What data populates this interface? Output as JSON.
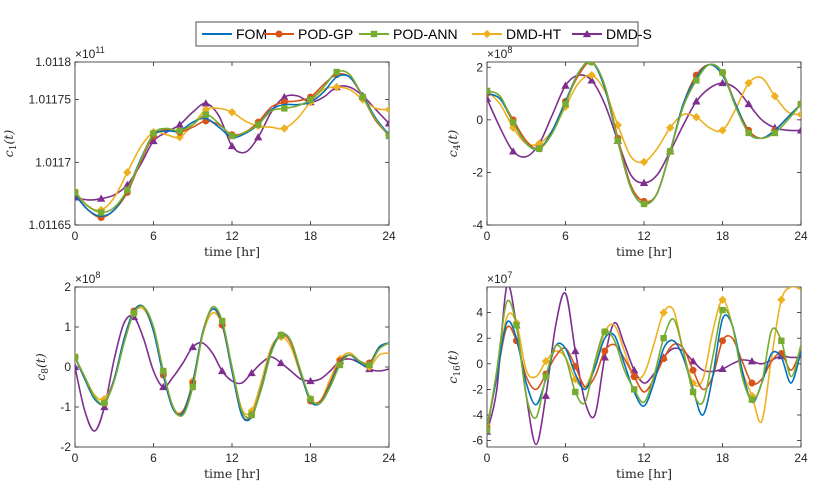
{
  "chart_data": {
    "type": "line",
    "colors": {
      "FOM": "#0072BD",
      "POD-GP": "#D95319",
      "POD-ANN": "#77AC30",
      "DMD-HT": "#EDB120",
      "DMD-S": "#7E2F8E"
    },
    "legend": {
      "position": "top-center",
      "entries": [
        {
          "name": "FOM",
          "marker": "none"
        },
        {
          "name": "POD-GP",
          "marker": "circle"
        },
        {
          "name": "POD-ANN",
          "marker": "square"
        },
        {
          "name": "DMD-HT",
          "marker": "diamond"
        },
        {
          "name": "DMD-S",
          "marker": "triangle"
        }
      ]
    },
    "panels": [
      {
        "id": "c1",
        "ylabel_base": "c",
        "ylabel_sub": "1",
        "ylabel_arg": "(t)",
        "xlabel": "time [hr]",
        "xlim": [
          0,
          24
        ],
        "xticks": [
          0,
          6,
          12,
          18,
          24
        ],
        "xtick_labels": [
          "0",
          "6",
          "12",
          "18",
          "24"
        ],
        "ylim": [
          1.01165,
          1.01178
        ],
        "yticks": [
          1.01165,
          1.0117,
          1.01175,
          1.01178
        ],
        "ytick_labels": [
          "1.01165",
          "1.0117",
          "1.01175",
          "1.0118"
        ],
        "sci_base": "×10",
        "sci_exp": "11",
        "t": [
          0,
          1,
          2,
          3,
          4,
          5,
          6,
          7,
          8,
          9,
          10,
          11,
          12,
          13,
          14,
          15,
          16,
          17,
          18,
          19,
          20,
          21,
          22,
          23,
          24
        ],
        "series": [
          {
            "name": "FOM",
            "values": [
              1.011674,
              1.011662,
              1.011657,
              1.011662,
              1.011678,
              1.011702,
              1.011722,
              1.011725,
              1.011725,
              1.011732,
              1.011735,
              1.011728,
              1.01172,
              1.011723,
              1.01173,
              1.011742,
              1.011746,
              1.011746,
              1.011748,
              1.011756,
              1.011768,
              1.011768,
              1.011753,
              1.011735,
              1.011722
            ]
          },
          {
            "name": "POD-GP",
            "values": [
              1.011675,
              1.011662,
              1.011656,
              1.011662,
              1.011676,
              1.0117,
              1.011721,
              1.011726,
              1.011724,
              1.011728,
              1.011733,
              1.01173,
              1.011722,
              1.011724,
              1.011732,
              1.011744,
              1.011748,
              1.011749,
              1.011752,
              1.011762,
              1.01177,
              1.011768,
              1.011752,
              1.011733,
              1.011722
            ]
          },
          {
            "name": "POD-ANN",
            "values": [
              1.011676,
              1.011665,
              1.01166,
              1.011664,
              1.011678,
              1.011701,
              1.011723,
              1.011727,
              1.011725,
              1.01173,
              1.011738,
              1.011731,
              1.011721,
              1.011724,
              1.01173,
              1.011741,
              1.011743,
              1.011745,
              1.01175,
              1.01176,
              1.011772,
              1.01177,
              1.011752,
              1.011734,
              1.011721
            ]
          },
          {
            "name": "DMD-HT",
            "values": [
              1.011677,
              1.011665,
              1.011662,
              1.011672,
              1.011692,
              1.011712,
              1.011724,
              1.011722,
              1.01172,
              1.01173,
              1.011742,
              1.011743,
              1.01174,
              1.011733,
              1.011729,
              1.011728,
              1.011727,
              1.011735,
              1.011748,
              1.011758,
              1.01176,
              1.011758,
              1.01175,
              1.011743,
              1.011742
            ]
          },
          {
            "name": "DMD-S",
            "values": [
              1.011672,
              1.01167,
              1.011671,
              1.011674,
              1.011682,
              1.011698,
              1.011717,
              1.011724,
              1.01173,
              1.01174,
              1.011747,
              1.011737,
              1.011713,
              1.011708,
              1.01172,
              1.01174,
              1.011752,
              1.011753,
              1.011748,
              1.011752,
              1.01176,
              1.01176,
              1.011753,
              1.011742,
              1.011731
            ]
          }
        ]
      },
      {
        "id": "c4",
        "ylabel_base": "c",
        "ylabel_sub": "4",
        "ylabel_arg": "(t)",
        "xlabel": "time [hr]",
        "xlim": [
          0,
          24
        ],
        "xticks": [
          0,
          6,
          12,
          18,
          24
        ],
        "xtick_labels": [
          "0",
          "6",
          "12",
          "18",
          "24"
        ],
        "ylim": [
          -4,
          2.2
        ],
        "yticks": [
          -4,
          -2,
          0,
          2
        ],
        "ytick_labels": [
          "-4",
          "-2",
          "0",
          "2"
        ],
        "sci_base": "×10",
        "sci_exp": "8",
        "t": [
          0,
          1,
          2,
          3,
          4,
          5,
          6,
          7,
          8,
          9,
          10,
          11,
          12,
          13,
          14,
          15,
          16,
          17,
          18,
          19,
          20,
          21,
          22,
          23,
          24
        ],
        "series": [
          {
            "name": "FOM",
            "values": [
              1.0,
              0.8,
              -0.1,
              -0.9,
              -1.1,
              -0.4,
              0.7,
              1.8,
              2.2,
              1.2,
              -0.8,
              -2.6,
              -3.2,
              -2.8,
              -1.2,
              0.6,
              1.6,
              2.1,
              1.7,
              0.6,
              -0.5,
              -0.7,
              -0.4,
              0.1,
              0.6
            ]
          },
          {
            "name": "POD-GP",
            "values": [
              1.0,
              0.8,
              0.0,
              -0.8,
              -1.1,
              -0.4,
              0.7,
              1.7,
              2.2,
              1.3,
              -0.7,
              -2.5,
              -3.1,
              -2.8,
              -1.2,
              0.6,
              1.7,
              2.1,
              1.8,
              0.6,
              -0.4,
              -0.7,
              -0.4,
              0.1,
              0.6
            ]
          },
          {
            "name": "POD-ANN",
            "values": [
              1.1,
              0.9,
              -0.1,
              -0.9,
              -1.1,
              -0.5,
              0.6,
              1.8,
              2.2,
              1.3,
              -0.8,
              -2.6,
              -3.2,
              -2.8,
              -1.2,
              0.5,
              1.5,
              2.1,
              1.8,
              0.5,
              -0.5,
              -0.7,
              -0.5,
              0.0,
              0.6
            ]
          },
          {
            "name": "DMD-HT",
            "values": [
              1.1,
              0.6,
              -0.3,
              -0.9,
              -0.9,
              -0.4,
              0.5,
              1.4,
              1.7,
              1.1,
              -0.2,
              -1.4,
              -1.6,
              -1.1,
              -0.3,
              0.2,
              0.1,
              -0.3,
              -0.4,
              0.4,
              1.4,
              1.6,
              0.9,
              0.3,
              0.2
            ]
          },
          {
            "name": "DMD-S",
            "values": [
              0.8,
              -0.3,
              -1.2,
              -1.4,
              -0.9,
              0.2,
              1.3,
              1.7,
              1.5,
              0.6,
              -0.8,
              -2.1,
              -2.4,
              -2.1,
              -1.2,
              -0.2,
              0.7,
              1.2,
              1.4,
              1.2,
              0.6,
              0.0,
              -0.3,
              -0.4,
              -0.4
            ]
          }
        ]
      },
      {
        "id": "c8",
        "ylabel_base": "c",
        "ylabel_sub": "8",
        "ylabel_arg": "(t)",
        "xlabel": "time [hr]",
        "xlim": [
          0,
          24
        ],
        "xticks": [
          0,
          6,
          12,
          18,
          24
        ],
        "xtick_labels": [
          "0",
          "6",
          "12",
          "18",
          "24"
        ],
        "ylim": [
          -2,
          2
        ],
        "yticks": [
          -2,
          -1,
          0,
          1,
          2
        ],
        "ytick_labels": [
          "-2",
          "-1",
          "0",
          "1",
          "2"
        ],
        "sci_base": "×10",
        "sci_exp": "8",
        "t": [
          0,
          0.75,
          1.5,
          2.25,
          3,
          3.75,
          4.5,
          5.25,
          6,
          6.75,
          7.5,
          8.25,
          9,
          9.75,
          10.5,
          11.25,
          12,
          12.75,
          13.5,
          14.25,
          15,
          15.75,
          16.5,
          17.25,
          18,
          18.75,
          19.5,
          20.25,
          21,
          21.75,
          22.5,
          23.25,
          24
        ],
        "series": [
          {
            "name": "FOM",
            "values": [
              0.25,
              -0.3,
              -0.8,
              -0.9,
              -0.3,
              0.7,
              1.4,
              1.5,
              0.9,
              -0.2,
              -1.05,
              -1.15,
              -0.4,
              0.85,
              1.45,
              1.1,
              -0.1,
              -1.2,
              -1.25,
              -0.5,
              0.4,
              0.82,
              0.65,
              -0.15,
              -0.85,
              -0.9,
              -0.45,
              0.1,
              0.3,
              0.1,
              0.05,
              0.5,
              0.6
            ]
          },
          {
            "name": "POD-GP",
            "values": [
              0.25,
              -0.3,
              -0.8,
              -0.9,
              -0.3,
              0.7,
              1.4,
              1.5,
              0.9,
              -0.2,
              -1.05,
              -1.1,
              -0.4,
              0.85,
              1.45,
              1.05,
              -0.1,
              -1.2,
              -1.2,
              -0.5,
              0.4,
              0.8,
              0.6,
              -0.15,
              -0.85,
              -0.85,
              -0.4,
              0.15,
              0.3,
              0.15,
              0.1,
              0.5,
              0.6
            ]
          },
          {
            "name": "POD-ANN",
            "values": [
              0.25,
              -0.25,
              -0.75,
              -0.9,
              -0.35,
              0.6,
              1.35,
              1.5,
              1.0,
              -0.1,
              -1.0,
              -1.2,
              -0.5,
              0.8,
              1.5,
              1.15,
              0.0,
              -1.1,
              -1.2,
              -0.55,
              0.35,
              0.8,
              0.65,
              -0.1,
              -0.8,
              -0.9,
              -0.5,
              0.05,
              0.3,
              0.15,
              0.05,
              0.45,
              0.6
            ]
          },
          {
            "name": "DMD-HT",
            "values": [
              0.25,
              -0.25,
              -0.7,
              -0.8,
              -0.3,
              0.65,
              1.35,
              1.45,
              0.9,
              -0.15,
              -1.0,
              -1.1,
              -0.35,
              0.8,
              1.35,
              1.05,
              0.0,
              -1.05,
              -1.1,
              -0.35,
              0.5,
              0.75,
              0.5,
              -0.2,
              -0.8,
              -0.85,
              -0.3,
              0.2,
              0.35,
              0.15,
              0.0,
              0.3,
              0.35
            ]
          },
          {
            "name": "DMD-S",
            "values": [
              0.0,
              -1.1,
              -1.6,
              -1.0,
              0.2,
              1.1,
              1.25,
              0.7,
              -0.1,
              -0.5,
              -0.25,
              0.1,
              0.5,
              0.6,
              0.35,
              -0.1,
              -0.35,
              -0.4,
              -0.15,
              0.1,
              0.25,
              0.1,
              -0.1,
              -0.3,
              -0.35,
              -0.3,
              -0.1,
              0.15,
              0.2,
              0.1,
              -0.05,
              -0.1,
              -0.05
            ]
          }
        ]
      },
      {
        "id": "c16",
        "ylabel_base": "c",
        "ylabel_sub": "16",
        "ylabel_arg": "(t)",
        "xlabel": "time [hr]",
        "xlim": [
          0,
          24
        ],
        "xticks": [
          0,
          6,
          12,
          18,
          24
        ],
        "xtick_labels": [
          "0",
          "6",
          "12",
          "18",
          "24"
        ],
        "ylim": [
          -6.5,
          6
        ],
        "yticks": [
          -6,
          -4,
          -2,
          0,
          2,
          4
        ],
        "ytick_labels": [
          "-6",
          "-4",
          "-2",
          "0",
          "2",
          "4"
        ],
        "sci_base": "×10",
        "sci_exp": "7",
        "t": [
          0,
          0.75,
          1.5,
          2.25,
          3,
          3.75,
          4.5,
          5.25,
          6,
          6.75,
          7.5,
          8.25,
          9,
          9.75,
          10.5,
          11.25,
          12,
          12.75,
          13.5,
          14.25,
          15,
          15.75,
          16.5,
          17.25,
          18,
          18.75,
          19.5,
          20.25,
          21,
          21.75,
          22.5,
          23.25,
          24
        ],
        "series": [
          {
            "name": "FOM",
            "values": [
              -5.0,
              -1.0,
              3.2,
              2.0,
              -1.5,
              -3.2,
              -1.2,
              1.4,
              1.2,
              -0.8,
              -2.0,
              -0.3,
              2.0,
              2.2,
              0.0,
              -2.2,
              -3.3,
              -1.5,
              1.2,
              1.8,
              0.5,
              -2.0,
              -4.0,
              -1.0,
              3.5,
              3.0,
              -0.5,
              -3.0,
              -1.5,
              0.8,
              0.5,
              -1.5,
              1.0
            ]
          },
          {
            "name": "POD-GP",
            "values": [
              -5.0,
              -1.0,
              2.8,
              1.8,
              -1.0,
              -2.0,
              -0.8,
              0.6,
              1.2,
              -0.2,
              -1.8,
              -1.0,
              1.0,
              1.5,
              0.4,
              -1.0,
              -2.2,
              -1.2,
              0.4,
              1.5,
              1.2,
              -0.5,
              -2.0,
              -1.0,
              1.8,
              2.0,
              0.2,
              -1.5,
              -1.2,
              0.2,
              0.8,
              -0.5,
              1.2
            ]
          },
          {
            "name": "POD-ANN",
            "values": [
              -5.2,
              -0.5,
              4.8,
              3.0,
              -2.5,
              -4.2,
              -1.0,
              1.4,
              0.5,
              -2.2,
              -3.0,
              0.2,
              2.5,
              1.8,
              -0.5,
              -2.0,
              -3.0,
              -1.0,
              2.0,
              3.5,
              1.0,
              -2.2,
              -3.0,
              0.5,
              4.2,
              3.0,
              -1.0,
              -2.8,
              -1.5,
              2.6,
              1.8,
              -1.0,
              1.5
            ]
          },
          {
            "name": "DMD-HT",
            "values": [
              -4.8,
              -1.0,
              3.6,
              3.2,
              -0.5,
              -1.0,
              0.2,
              1.0,
              0.5,
              -1.2,
              -1.8,
              0.0,
              2.5,
              3.0,
              1.0,
              -1.0,
              -0.8,
              1.5,
              4.0,
              4.2,
              1.0,
              -1.5,
              -1.2,
              2.5,
              5.0,
              3.0,
              -0.5,
              -2.5,
              -4.5,
              0.5,
              5.0,
              6.0,
              5.8
            ]
          },
          {
            "name": "DMD-S",
            "values": [
              -5.3,
              -2.0,
              6.0,
              3.0,
              -2.5,
              -6.3,
              -2.5,
              3.0,
              5.5,
              1.0,
              -3.0,
              -4.0,
              0.5,
              3.2,
              1.5,
              -0.5,
              -1.5,
              -0.8,
              0.5,
              1.2,
              1.0,
              0.2,
              -0.5,
              -0.6,
              -0.4,
              0.0,
              0.3,
              0.2,
              0.0,
              0.3,
              0.6,
              0.5,
              0.5
            ]
          }
        ]
      }
    ]
  }
}
